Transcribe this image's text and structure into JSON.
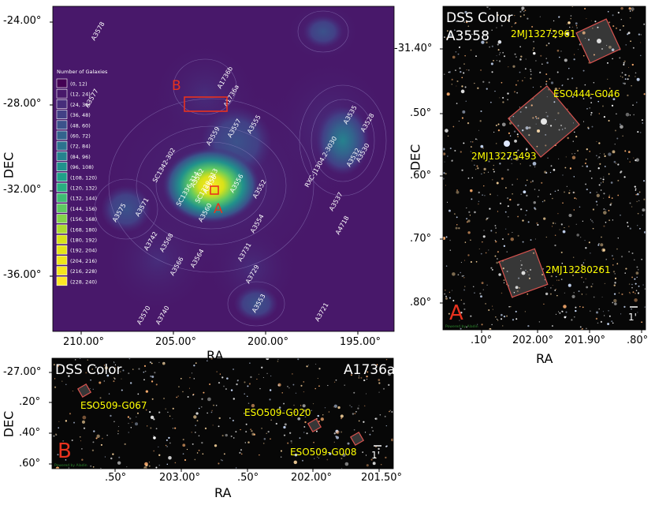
{
  "panel_main": {
    "xlabel": "RA",
    "ylabel": "DEC",
    "xticks": [
      "210.00°",
      "205.00°",
      "200.00°",
      "195.00°"
    ],
    "yticks": [
      "-24.00°",
      "-28.00°",
      "-32.00°",
      "-36.00°"
    ],
    "legend_title": "Number of Galaxies",
    "legend_bins": [
      "(0, 12)",
      "(12, 24)",
      "(24, 36)",
      "(36, 48)",
      "(48, 60)",
      "(60, 72)",
      "(72, 84)",
      "(84, 96)",
      "(96, 108)",
      "(108, 120)",
      "(120, 132)",
      "(132, 144)",
      "(144, 156)",
      "(156, 168)",
      "(168, 180)",
      "(180, 192)",
      "(192, 204)",
      "(204, 216)",
      "(216, 228)",
      "(228, 240)"
    ],
    "legend_colors": [
      "#440154",
      "#48186a",
      "#472d7b",
      "#424086",
      "#3b528b",
      "#33638d",
      "#2c728e",
      "#26828e",
      "#21918c",
      "#1fa088",
      "#28ae80",
      "#3fbc73",
      "#5ec962",
      "#84d44b",
      "#addc30",
      "#d8e219",
      "#e6e419",
      "#efe51c",
      "#f5e61e",
      "#fde725"
    ],
    "marker_A": "A",
    "marker_B": "B",
    "clusters": [
      "A3578",
      "A3577",
      "A1736b",
      "A1736a",
      "A3559",
      "A3557",
      "A3555",
      "A3535",
      "A3528",
      "SC1342-302",
      "RXC-J1304.2-3030",
      "A3532",
      "A3530",
      "SC1336-314",
      "A3562",
      "SC1329-313",
      "A3558",
      "A3556",
      "A3552",
      "A3575",
      "A3571",
      "A3560",
      "A3537",
      "A3554",
      "A4718",
      "A3742",
      "A3568",
      "A3566",
      "A3564",
      "A3731",
      "A3729",
      "A3570",
      "A3740",
      "A3553",
      "A3721"
    ],
    "colors": {
      "box": "#e8321e",
      "label": "#ffffff",
      "marker": "#e8321e"
    }
  },
  "panel_a": {
    "title": "DSS Color",
    "cluster": "A3558",
    "marker": "A",
    "xlabel": "RA",
    "ylabel": "DEC",
    "xticks": [
      ".10°",
      "202.00°",
      "201.90°",
      ".80°"
    ],
    "yticks": [
      "-31.40°",
      ".50°",
      ".60°",
      ".70°",
      ".80°"
    ],
    "galaxies": [
      "2MJ13272961",
      "ESO444-G046",
      "2MJ13275493",
      "2MJ13280261"
    ],
    "scale": "1'",
    "credit": "Powered by Aladin",
    "colors": {
      "label": "#ffff00",
      "box": "#d9534f",
      "title": "#ffffff",
      "marker": "#e8321e"
    }
  },
  "panel_b": {
    "title": "DSS Color",
    "cluster": "A1736a",
    "marker": "B",
    "xlabel": "RA",
    "ylabel": "DEC",
    "xticks": [
      ".50°",
      "203.00°",
      ".50°",
      "202.00°",
      "201.50°"
    ],
    "yticks": [
      "-27.00°",
      ".20°",
      ".40°",
      ".60°"
    ],
    "galaxies": [
      "ESO509-G067",
      "ESO509-G020",
      "ESO509-G008"
    ],
    "scale": "1'",
    "credit": "Powered by Aladin",
    "colors": {
      "label": "#ffff00",
      "box": "#d9534f",
      "title": "#ffffff",
      "marker": "#e8321e"
    }
  }
}
